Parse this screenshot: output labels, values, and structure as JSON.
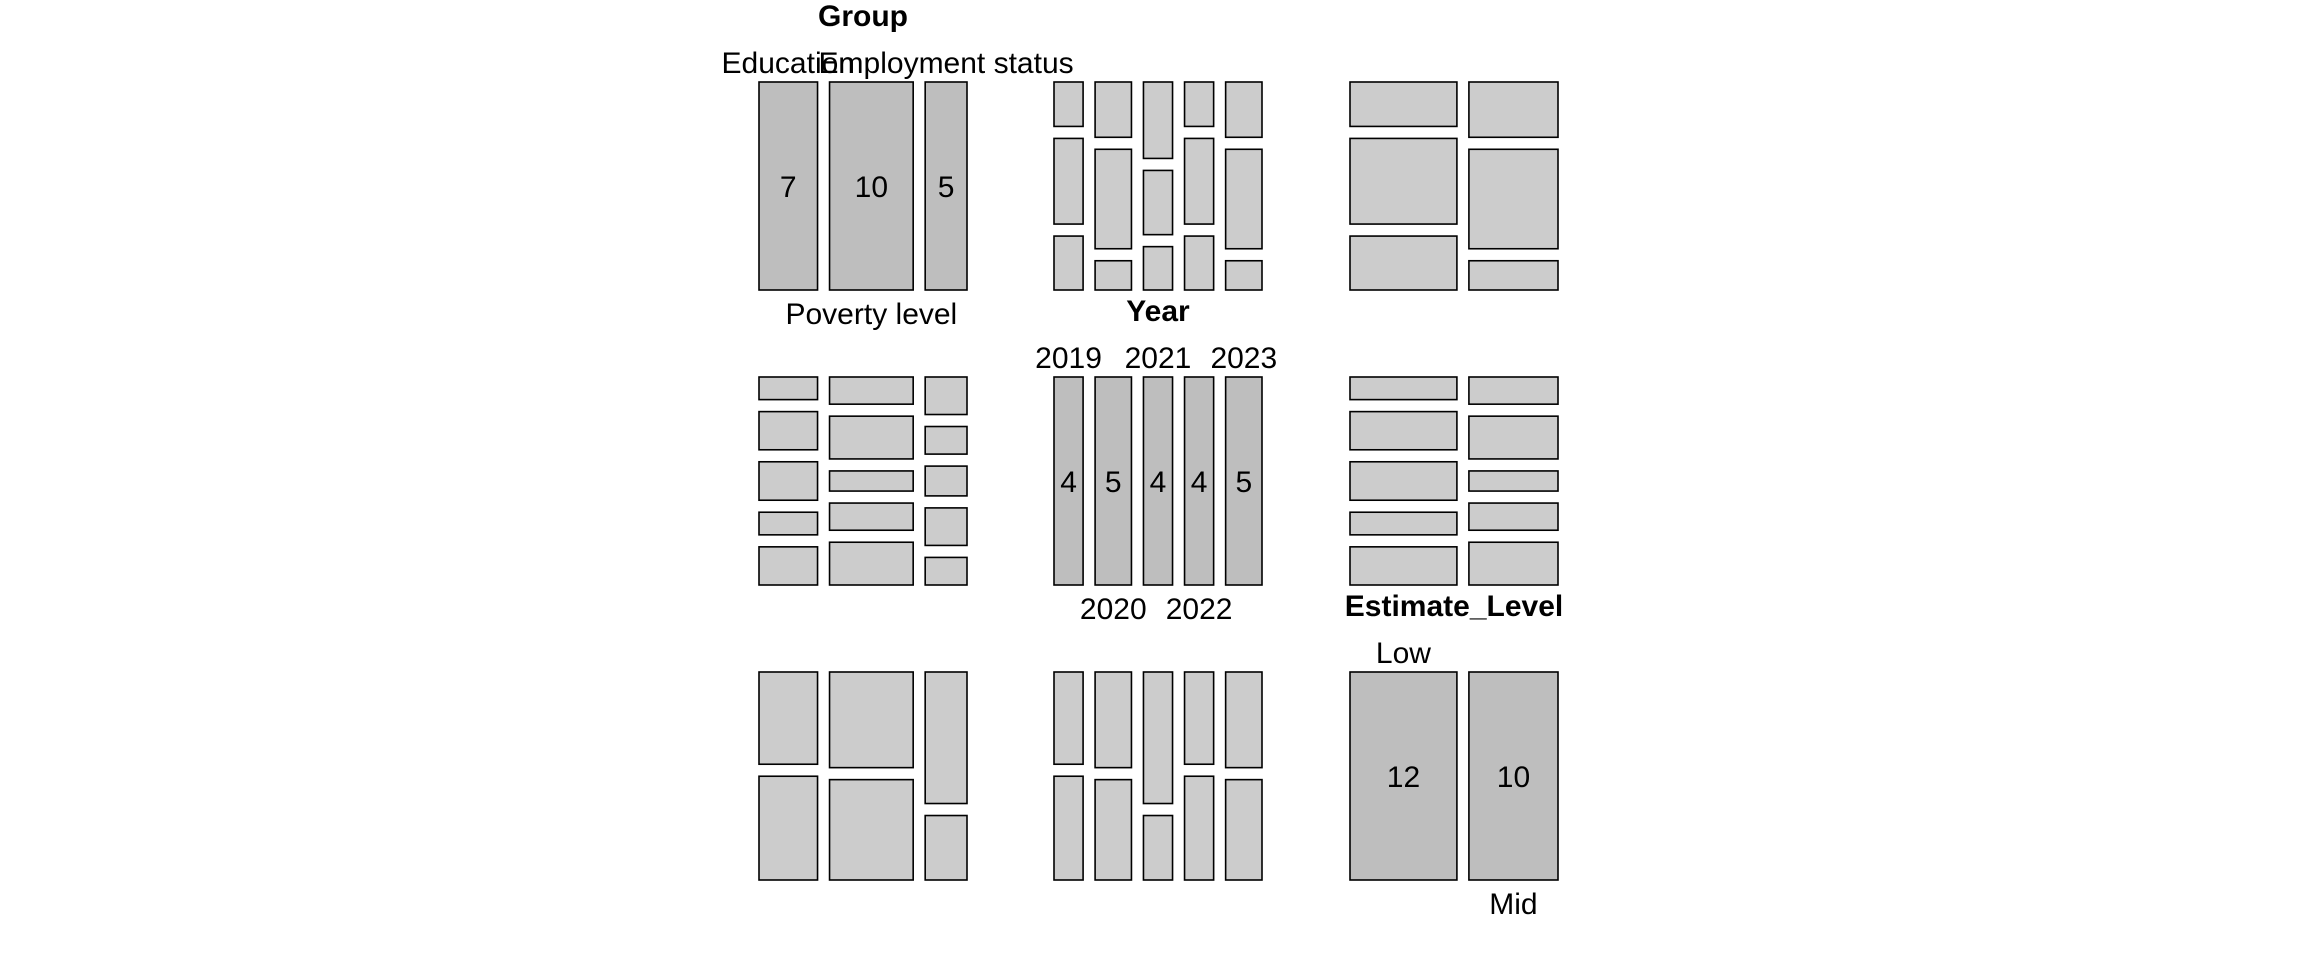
{
  "colors": {
    "diagonal_fill": "#bebebe",
    "offdiag_fill": "#cccccc",
    "stroke": "#000000",
    "background": "#ffffff"
  },
  "chart_data": {
    "type": "pairs-mosaic",
    "variables": [
      {
        "name": "Group",
        "levels": [
          {
            "label": "Education",
            "count": 7
          },
          {
            "label": "Poverty level",
            "count": 10
          },
          {
            "label": "Employment status",
            "count": 5
          }
        ]
      },
      {
        "name": "Year",
        "levels": [
          {
            "label": "2019",
            "count": 4
          },
          {
            "label": "2020",
            "count": 5
          },
          {
            "label": "2021",
            "count": 4
          },
          {
            "label": "2022",
            "count": 4
          },
          {
            "label": "2023",
            "count": 5
          }
        ]
      },
      {
        "name": "Estimate_Level",
        "levels": [
          {
            "label": "Low",
            "count": 12
          },
          {
            "label": "Mid",
            "count": 10
          }
        ]
      }
    ]
  }
}
